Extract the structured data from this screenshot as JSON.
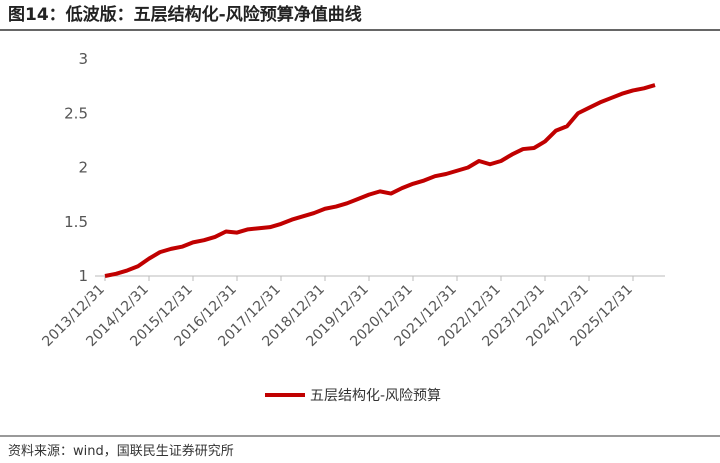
{
  "title": "图14：低波版：五层结构化-风险预算净值曲线",
  "source": "资料来源：wind，国联民生证券研究所",
  "chart_data": {
    "type": "line",
    "categories": [
      "2013/12/31",
      null,
      null,
      null,
      "2014/12/31",
      null,
      null,
      null,
      "2015/12/31",
      null,
      null,
      null,
      "2016/12/31",
      null,
      null,
      null,
      "2017/12/31",
      null,
      null,
      null,
      "2018/12/31",
      null,
      null,
      null,
      "2019/12/31",
      null,
      null,
      null,
      "2020/12/31",
      null,
      null,
      null,
      "2021/12/31",
      null,
      null,
      null,
      "2022/12/31",
      null,
      null,
      null,
      "2023/12/31",
      null,
      null,
      null,
      "2024/12/31",
      null,
      null,
      null,
      "2025/12/31",
      null,
      null
    ],
    "series": [
      {
        "name": "五层结构化-风险预算",
        "color": "#c00000",
        "values": [
          1.0,
          1.02,
          1.05,
          1.09,
          1.16,
          1.22,
          1.25,
          1.27,
          1.31,
          1.33,
          1.36,
          1.41,
          1.4,
          1.43,
          1.44,
          1.45,
          1.48,
          1.52,
          1.55,
          1.58,
          1.62,
          1.64,
          1.67,
          1.71,
          1.75,
          1.78,
          1.76,
          1.81,
          1.85,
          1.88,
          1.92,
          1.94,
          1.97,
          2.0,
          2.06,
          2.03,
          2.06,
          2.12,
          2.17,
          2.18,
          2.24,
          2.34,
          2.38,
          2.5,
          2.55,
          2.6,
          2.64,
          2.68,
          2.71,
          2.73,
          2.76
        ]
      }
    ],
    "ylim": [
      1,
      3
    ],
    "yticks": [
      1,
      1.5,
      2,
      2.5,
      3
    ]
  }
}
